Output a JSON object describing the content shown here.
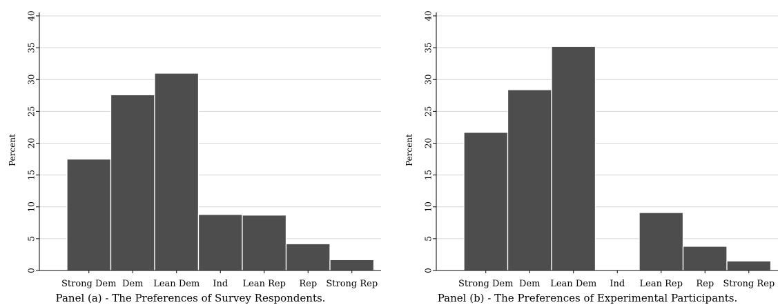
{
  "chart_data": [
    {
      "type": "bar",
      "caption": "Panel (a) - The Preferences of Survey Respondents.",
      "ylabel": "Percent",
      "xlabel": "",
      "ylim": [
        0,
        40
      ],
      "yticks": [
        "0",
        "5",
        "10",
        "15",
        "20",
        "25",
        "30",
        "35",
        "40"
      ],
      "grid": true,
      "categories": [
        "Strong Dem",
        "Dem",
        "Lean Dem",
        "Ind",
        "Lean Rep",
        "Rep",
        "Strong Rep"
      ],
      "values": [
        17.5,
        27.6,
        31.0,
        8.8,
        8.7,
        4.2,
        1.7
      ]
    },
    {
      "type": "bar",
      "caption": "Panel (b) - The Preferences of Experimental Participants.",
      "ylabel": "Percent",
      "xlabel": "",
      "ylim": [
        0,
        40
      ],
      "yticks": [
        "0",
        "5",
        "10",
        "15",
        "20",
        "25",
        "30",
        "35",
        "40"
      ],
      "grid": true,
      "categories": [
        "Strong Dem",
        "Dem",
        "Lean Dem",
        "Ind",
        "Lean Rep",
        "Rep",
        "Strong Rep"
      ],
      "values": [
        21.7,
        28.4,
        35.2,
        0,
        9.1,
        3.8,
        1.5
      ]
    }
  ],
  "colors": {
    "bar": "#4d4d4d",
    "grid": "#d4d4d4",
    "axis": "#000000"
  }
}
